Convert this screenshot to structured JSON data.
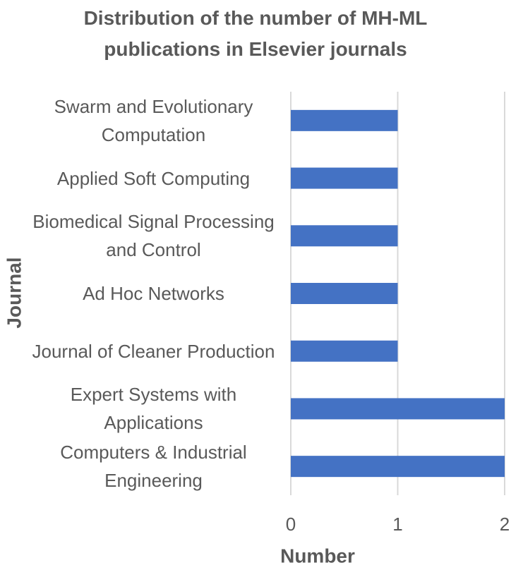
{
  "chart_data": {
    "type": "bar",
    "orientation": "horizontal",
    "title": "Distribution of the number of MH-ML publications in Elsevier journals",
    "x_label": "Number",
    "y_label": "Journal",
    "categories": [
      "Swarm and Evolutionary Computation",
      "Applied Soft Computing",
      "Biomedical Signal Processing and Control",
      "Ad Hoc Networks",
      "Journal of Cleaner Production",
      "Expert Systems with Applications",
      "Computers & Industrial Engineering"
    ],
    "values": [
      1,
      1,
      1,
      1,
      1,
      2,
      2
    ],
    "color": "#4472c4",
    "xlim": [
      0,
      2
    ],
    "xticks": [
      0,
      1,
      2
    ],
    "grid": true
  }
}
